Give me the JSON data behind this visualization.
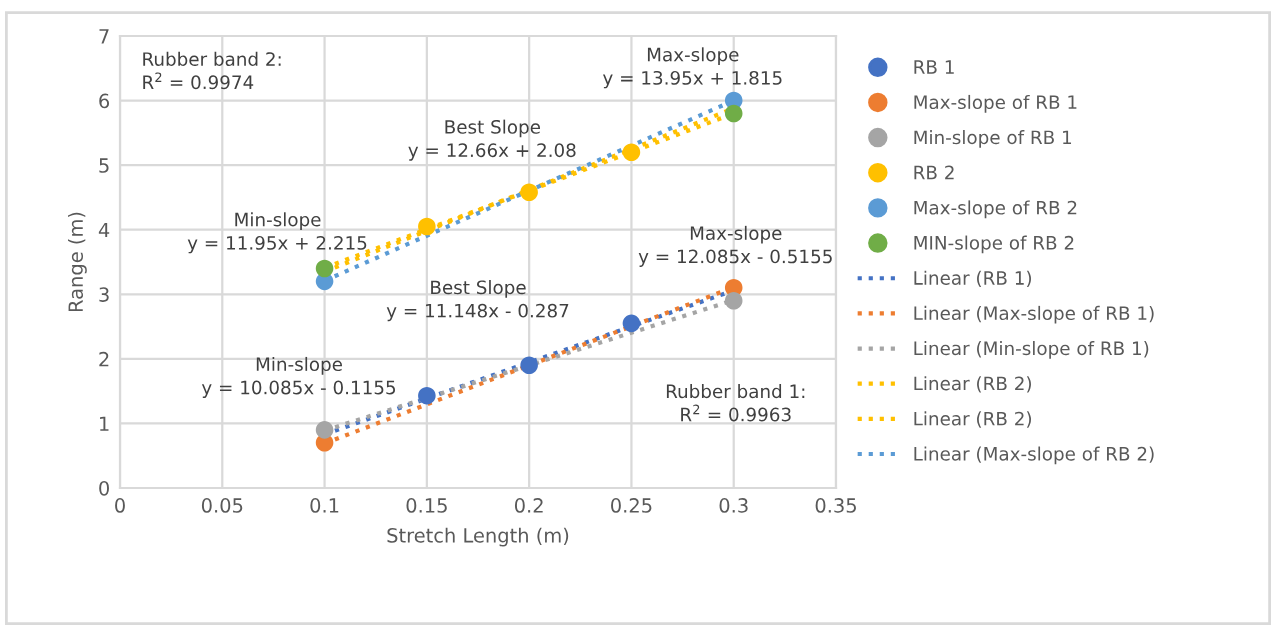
{
  "chart_data": {
    "type": "scatter",
    "xlabel": "Stretch Length (m)",
    "ylabel": "Range (m)",
    "xlim": [
      0,
      0.35
    ],
    "xticks": [
      0,
      0.05,
      0.1,
      0.15,
      0.2,
      0.25,
      0.3,
      0.35
    ],
    "ylim": [
      0,
      7
    ],
    "yticks": [
      0,
      1,
      2,
      3,
      4,
      5,
      6,
      7
    ],
    "grid": true,
    "legend": "right",
    "series": [
      {
        "name": "RB 1",
        "marker": "circle",
        "color": "#4472c4",
        "x": [
          0.15,
          0.2,
          0.25
        ],
        "values": [
          1.43,
          1.9,
          2.55
        ]
      },
      {
        "name": "Max-slope of RB 1",
        "marker": "circle",
        "color": "#ed7d31",
        "x": [
          0.1,
          0.3
        ],
        "values": [
          0.7,
          3.1
        ]
      },
      {
        "name": "Min-slope of RB 1",
        "marker": "circle",
        "color": "#a5a5a5",
        "x": [
          0.1,
          0.3
        ],
        "values": [
          0.9,
          2.9
        ]
      },
      {
        "name": "RB 2",
        "marker": "circle",
        "color": "#ffc000",
        "x": [
          0.15,
          0.2,
          0.25
        ],
        "values": [
          4.05,
          4.58,
          5.2
        ]
      },
      {
        "name": "Max-slope of RB 2",
        "marker": "circle",
        "color": "#5b9bd5",
        "x": [
          0.1,
          0.3
        ],
        "values": [
          3.2,
          6.0
        ]
      },
      {
        "name": "MIN-slope of RB 2",
        "marker": "circle",
        "color": "#70ad47",
        "x": [
          0.1,
          0.3
        ],
        "values": [
          3.4,
          5.8
        ]
      },
      {
        "name": "Linear (RB 1)",
        "type": "line",
        "line_style": "dotted",
        "color": "#4472c4",
        "x": [
          0.1,
          0.3
        ],
        "values": [
          0.83,
          3.06
        ]
      },
      {
        "name": "Linear (Max-slope of RB 1)",
        "type": "line",
        "line_style": "dotted",
        "color": "#ed7d31",
        "x": [
          0.1,
          0.3
        ],
        "values": [
          0.69,
          3.11
        ]
      },
      {
        "name": "Linear (Min-slope of RB 1)",
        "type": "line",
        "line_style": "dotted",
        "color": "#a5a5a5",
        "x": [
          0.1,
          0.3
        ],
        "values": [
          0.89,
          2.91
        ]
      },
      {
        "name": "Linear (RB 2)",
        "type": "line",
        "line_style": "dotted",
        "color": "#ffc000",
        "x": [
          0.1,
          0.3
        ],
        "values": [
          3.35,
          5.88
        ]
      },
      {
        "name": "Linear (RB 2)",
        "type": "line",
        "line_style": "dotted",
        "color": "#ffc000",
        "x": [
          0.1,
          0.3
        ],
        "values": [
          3.41,
          5.8
        ]
      },
      {
        "name": "Linear (Max-slope of RB 2)",
        "type": "line",
        "line_style": "dotted",
        "color": "#5b9bd5",
        "x": [
          0.1,
          0.3
        ],
        "values": [
          3.21,
          6.0
        ]
      }
    ],
    "annotations": [
      "Rubber band 2:\nR$^{2}$ = 0.9974",
      "Max-slope\ny = 13.95x + 1.815",
      "Best Slope\ny = 12.66x + 2.08",
      "Min-slope\ny = 11.95x + 2.215",
      "Max-slope\ny = 12.085x - 0.5155",
      "Best Slope\ny = 11.148x - 0.287",
      "Min-slope\ny = 10.085x - 0.1155",
      "Rubber band 1:\nR$^{2}$ = 0.9963"
    ]
  }
}
